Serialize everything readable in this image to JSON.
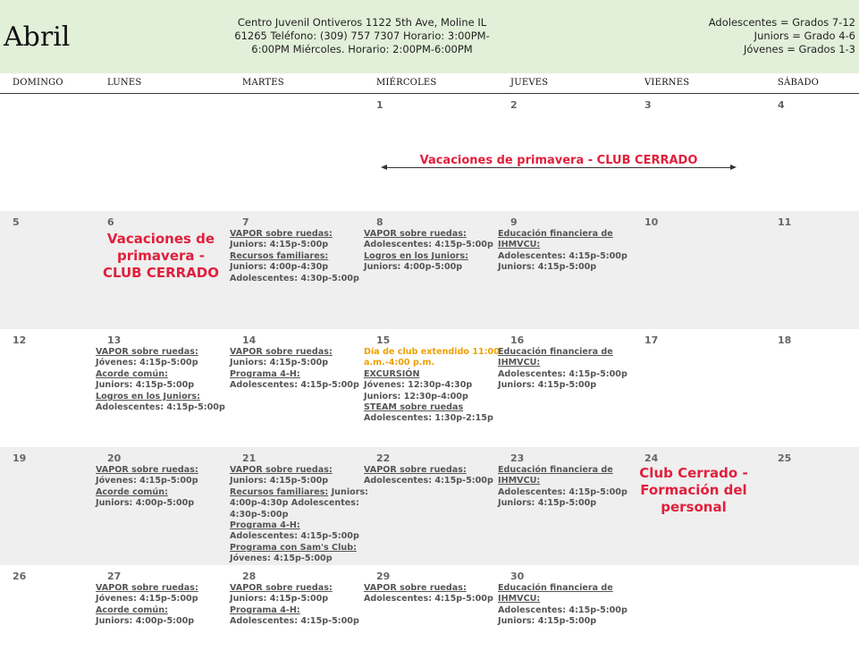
{
  "header": {
    "month": "Abril",
    "center_lines": [
      "Centro Juvenil Ontiveros 1122 5th Ave, Moline IL",
      "61265 Teléfono: (309) 757 7307 Horario: 3:00PM-",
      "6:00PM Miércoles. Horario: 2:00PM-6:00PM"
    ],
    "legend": [
      "Adolescentes = Grados 7-12",
      "Juniors = Grado 4-6",
      "Jóvenes = Grados 1-3"
    ]
  },
  "days_of_week": [
    "DOMINGO",
    "LUNES",
    "MARTES",
    "MIÉRCOLES",
    "JUEVES",
    "VIERNES",
    "SÁBADO"
  ],
  "week1": {
    "days": [
      "",
      "",
      "",
      "1",
      "2",
      "3",
      "4"
    ],
    "banner": "Vacaciones de primavera - CLUB CERRADO"
  },
  "week2": {
    "days": [
      "5",
      "6",
      "7",
      "8",
      "9",
      "10",
      "11"
    ],
    "monday_notice": [
      "Vacaciones de",
      "primavera -",
      "CLUB CERRADO"
    ],
    "tuesday": [
      "VAPOR sobre ruedas:",
      "Juniors: 4:15p-5:00p",
      "Recursos familiares:",
      "Juniors: 4:00p-4:30p",
      "Adolescentes: 4:30p-5:00p"
    ],
    "wednesday": [
      "VAPOR sobre ruedas:",
      "Adolescentes: 4:15p-5:00p",
      "Logros en los Juniors:",
      "Juniors: 4:00p-5:00p"
    ],
    "thursday": [
      "Educación financiera de",
      "IHMVCU:",
      "Adolescentes: 4:15p-5:00p",
      "Juniors: 4:15p-5:00p"
    ]
  },
  "week3": {
    "days": [
      "12",
      "13",
      "14",
      "15",
      "16",
      "17",
      "18"
    ],
    "monday": [
      "VAPOR sobre ruedas:",
      "Jóvenes: 4:15p-5:00p",
      "Acorde común:",
      "Juniors: 4:15p-5:00p",
      "Logros en los Juniors:",
      "Adolescentes: 4:15p-5:00p"
    ],
    "tuesday": [
      "VAPOR sobre ruedas:",
      "Juniors: 4:15p-5:00p",
      "Programa 4-H:",
      "Adolescentes: 4:15p-5:00p"
    ],
    "wednesday": [
      "Día de club extendido 11:00",
      "a.m.-4:00 p.m.",
      "EXCURSIÓN",
      "Jóvenes: 12:30p-4:30p",
      "Juniors: 12:30p-4:00p",
      "STEAM sobre ruedas",
      "Adolescentes: 1:30p-2:15p"
    ],
    "thursday": [
      "Educación financiera de",
      "IHMVCU:",
      "Adolescentes: 4:15p-5:00p",
      "Juniors: 4:15p-5:00p"
    ]
  },
  "week4": {
    "days": [
      "19",
      "20",
      "21",
      "22",
      "23",
      "24",
      "25"
    ],
    "monday": [
      "VAPOR sobre ruedas:",
      "Jóvenes: 4:15p-5:00p",
      "Acorde común:",
      "Juniors: 4:00p-5:00p"
    ],
    "tuesday": [
      "VAPOR sobre ruedas:",
      "Juniors: 4:15p-5:00p",
      "Recursos familiares:",
      " Juniors:",
      "4:00p-4:30p Adolescentes:",
      "4:30p-5:00p",
      "Programa 4-H:",
      "Adolescentes: 4:15p-5:00p",
      "Programa con Sam's Club:",
      "Jóvenes: 4:15p-5:00p"
    ],
    "wednesday": [
      "VAPOR sobre ruedas:",
      "Adolescentes: 4:15p-5:00p"
    ],
    "thursday": [
      "Educación financiera de",
      "IHMVCU:",
      "Adolescentes: 4:15p-5:00p",
      "Juniors: 4:15p-5:00p"
    ],
    "friday_notice": [
      "Club Cerrado -",
      "Formación del",
      "personal"
    ]
  },
  "week5": {
    "days": [
      "26",
      "27",
      "28",
      "29",
      "30",
      "",
      ""
    ],
    "monday": [
      "VAPOR sobre ruedas:",
      "Jóvenes: 4:15p-5:00p",
      "Acorde común:",
      "Juniors: 4:00p-5:00p"
    ],
    "tuesday": [
      "VAPOR sobre ruedas:",
      "Juniors: 4:15p-5:00p",
      "Programa 4-H:",
      "Adolescentes: 4:15p-5:00p"
    ],
    "wednesday": [
      "VAPOR sobre ruedas:",
      "Adolescentes: 4:15p-5:00p"
    ],
    "thursday": [
      "Educación financiera de",
      "IHMVCU:",
      "Adolescentes: 4:15p-5:00p",
      "Juniors: 4:15p-5:00p"
    ]
  }
}
